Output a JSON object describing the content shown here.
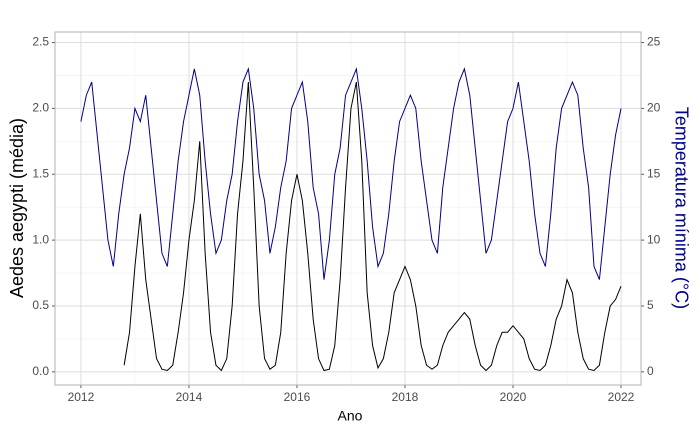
{
  "chart_data": {
    "type": "line",
    "x_label": "Ano",
    "y_label": "Aedes aegypti (média)",
    "y2_label": "Temperatura mínima (°C)",
    "x": [
      2012.0,
      2012.1,
      2012.2,
      2012.3,
      2012.4,
      2012.5,
      2012.6,
      2012.7,
      2012.8,
      2012.9,
      2013.0,
      2013.1,
      2013.2,
      2013.3,
      2013.4,
      2013.5,
      2013.6,
      2013.7,
      2013.8,
      2013.9,
      2014.0,
      2014.1,
      2014.2,
      2014.3,
      2014.4,
      2014.5,
      2014.6,
      2014.7,
      2014.8,
      2014.9,
      2015.0,
      2015.1,
      2015.2,
      2015.3,
      2015.4,
      2015.5,
      2015.6,
      2015.7,
      2015.8,
      2015.9,
      2016.0,
      2016.1,
      2016.2,
      2016.3,
      2016.4,
      2016.5,
      2016.6,
      2016.7,
      2016.8,
      2016.9,
      2017.0,
      2017.1,
      2017.2,
      2017.3,
      2017.4,
      2017.5,
      2017.6,
      2017.7,
      2017.8,
      2017.9,
      2018.0,
      2018.1,
      2018.2,
      2018.3,
      2018.4,
      2018.5,
      2018.6,
      2018.7,
      2018.8,
      2018.9,
      2019.0,
      2019.1,
      2019.2,
      2019.3,
      2019.4,
      2019.5,
      2019.6,
      2019.7,
      2019.8,
      2019.9,
      2020.0,
      2020.1,
      2020.2,
      2020.3,
      2020.4,
      2020.5,
      2020.6,
      2020.7,
      2020.8,
      2020.9,
      2021.0,
      2021.1,
      2021.2,
      2021.3,
      2021.4,
      2021.5,
      2021.6,
      2021.7,
      2021.8,
      2021.9,
      2022.0
    ],
    "series": [
      {
        "color": "#000000",
        "values": [
          null,
          null,
          null,
          null,
          null,
          null,
          null,
          null,
          0.05,
          0.3,
          0.8,
          1.2,
          0.7,
          0.4,
          0.1,
          0.02,
          0.01,
          0.05,
          0.3,
          0.6,
          1.0,
          1.3,
          1.75,
          0.9,
          0.3,
          0.05,
          0.01,
          0.1,
          0.5,
          1.2,
          1.6,
          2.2,
          1.4,
          0.5,
          0.1,
          0.02,
          0.05,
          0.3,
          0.9,
          1.3,
          1.5,
          1.3,
          0.9,
          0.4,
          0.1,
          0.01,
          0.02,
          0.2,
          0.7,
          1.4,
          2.0,
          2.2,
          1.6,
          0.6,
          0.2,
          0.03,
          0.1,
          0.3,
          0.6,
          0.7,
          0.8,
          0.7,
          0.5,
          0.2,
          0.05,
          0.02,
          0.05,
          0.2,
          0.3,
          0.35,
          0.4,
          0.45,
          0.4,
          0.2,
          0.05,
          0.01,
          0.05,
          0.2,
          0.3,
          0.3,
          0.35,
          0.3,
          0.25,
          0.1,
          0.02,
          0.01,
          0.05,
          0.2,
          0.4,
          0.5,
          0.7,
          0.6,
          0.3,
          0.1,
          0.02,
          0.01,
          0.05,
          0.3,
          0.5,
          0.55,
          0.65
        ]
      },
      {
        "color": "#00008b",
        "axis": "y2",
        "values": [
          19,
          21,
          22,
          18,
          14,
          10,
          8,
          12,
          15,
          17,
          20,
          19,
          21,
          17,
          13,
          9,
          8,
          12,
          16,
          19,
          21,
          23,
          21,
          16,
          12,
          9,
          10,
          13,
          15,
          19,
          22,
          23,
          20,
          15,
          13,
          9,
          11,
          14,
          16,
          20,
          21,
          22,
          19,
          14,
          12,
          7,
          10,
          15,
          17,
          21,
          22,
          23,
          20,
          16,
          11,
          8,
          9,
          12,
          16,
          19,
          20,
          21,
          20,
          16,
          13,
          10,
          9,
          14,
          17,
          20,
          22,
          23,
          21,
          17,
          13,
          9,
          10,
          13,
          16,
          19,
          20,
          22,
          19,
          16,
          12,
          9,
          8,
          12,
          17,
          20,
          21,
          22,
          21,
          17,
          14,
          8,
          7,
          11,
          15,
          18,
          20
        ]
      }
    ],
    "xlim": [
      2011.52,
      2022.37
    ],
    "xticks": [
      2012,
      2014,
      2016,
      2018,
      2020,
      2022
    ],
    "ylim": [
      -0.1,
      2.58
    ],
    "yticks": [
      {
        "value": 0,
        "label": "0.0"
      },
      0.5,
      {
        "value": 1,
        "label": "1.0"
      },
      1.5,
      {
        "value": 2,
        "label": "2.0"
      },
      2.5
    ],
    "y2lim": [
      -1,
      25.8
    ],
    "y2ticks": [
      0,
      5,
      10,
      15,
      20,
      25
    ],
    "grid": true
  }
}
